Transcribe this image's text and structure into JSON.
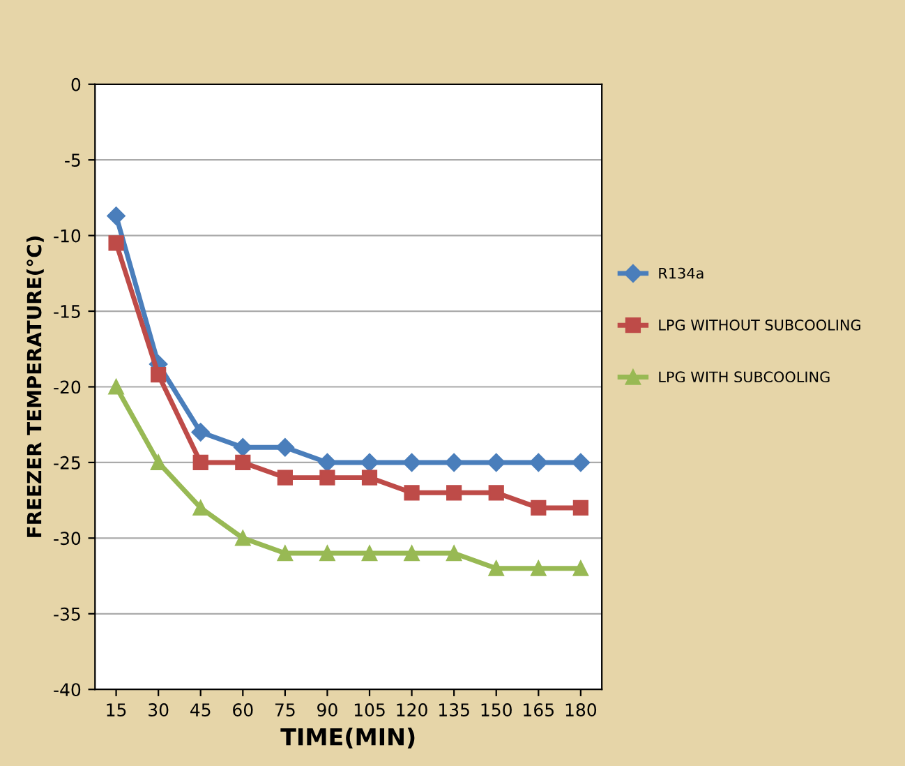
{
  "chart_data": {
    "type": "line",
    "xlabel": "TIME(MIN)",
    "ylabel": "FREEZER TEMPERATURE(°C)",
    "categories": [
      "15",
      "30",
      "45",
      "60",
      "75",
      "90",
      "105",
      "120",
      "135",
      "150",
      "165",
      "180"
    ],
    "ylim": [
      -40,
      0
    ],
    "yticks": [
      -40,
      -35,
      -30,
      -25,
      -20,
      -15,
      -10,
      -5,
      0
    ],
    "grid": "y",
    "legend": "right",
    "line_style": "solid",
    "series": [
      {
        "name": "R134a",
        "color": "#4a7ebb",
        "marker": "diamond",
        "values": [
          -8.7,
          -18.5,
          -23,
          -24,
          -24,
          -25,
          -25,
          -25,
          -25,
          -25,
          -25,
          -25
        ]
      },
      {
        "name": "LPG WITHOUT SUBCOOLING",
        "color": "#be4b48",
        "marker": "square",
        "values": [
          -10.5,
          -19.2,
          -25,
          -25,
          -26,
          -26,
          -26,
          -27,
          -27,
          -27,
          -28,
          -28
        ]
      },
      {
        "name": "LPG WITH SUBCOOLING",
        "color": "#98b954",
        "marker": "triangle",
        "values": [
          -20,
          -25,
          -28,
          -30,
          -31,
          -31,
          -31,
          -31,
          -31,
          -32,
          -32,
          -32
        ]
      }
    ]
  }
}
